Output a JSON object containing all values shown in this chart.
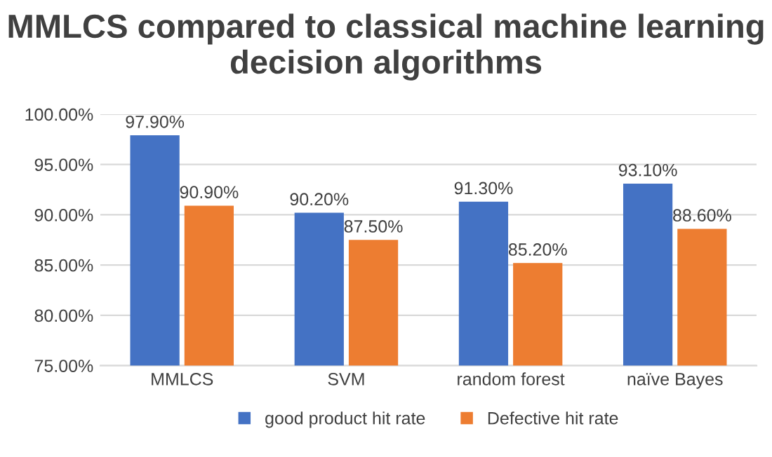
{
  "chart_data": {
    "type": "bar",
    "title": "MMLCS compared to classical machine learning decision algorithms",
    "categories": [
      "MMLCS",
      "SVM",
      "random forest",
      "naïve Bayes"
    ],
    "series": [
      {
        "name": "good product hit rate",
        "color": "#4472c4",
        "values": [
          97.9,
          90.2,
          91.3,
          93.1
        ],
        "value_labels": [
          "97.90%",
          "90.20%",
          "91.30%",
          "93.10%"
        ]
      },
      {
        "name": "Defective hit rate",
        "color": "#ed7d31",
        "values": [
          90.9,
          87.5,
          85.2,
          88.6
        ],
        "value_labels": [
          "90.90%",
          "87.50%",
          "85.20%",
          "88.60%"
        ]
      }
    ],
    "ylim": [
      75,
      100
    ],
    "yticks": [
      {
        "value": 75,
        "label": "75.00%"
      },
      {
        "value": 80,
        "label": "80.00%"
      },
      {
        "value": 85,
        "label": "85.00%"
      },
      {
        "value": 90,
        "label": "90.00%"
      },
      {
        "value": 95,
        "label": "95.00%"
      },
      {
        "value": 100,
        "label": "100.00%"
      }
    ],
    "grid": "y",
    "legend": "bottom"
  }
}
